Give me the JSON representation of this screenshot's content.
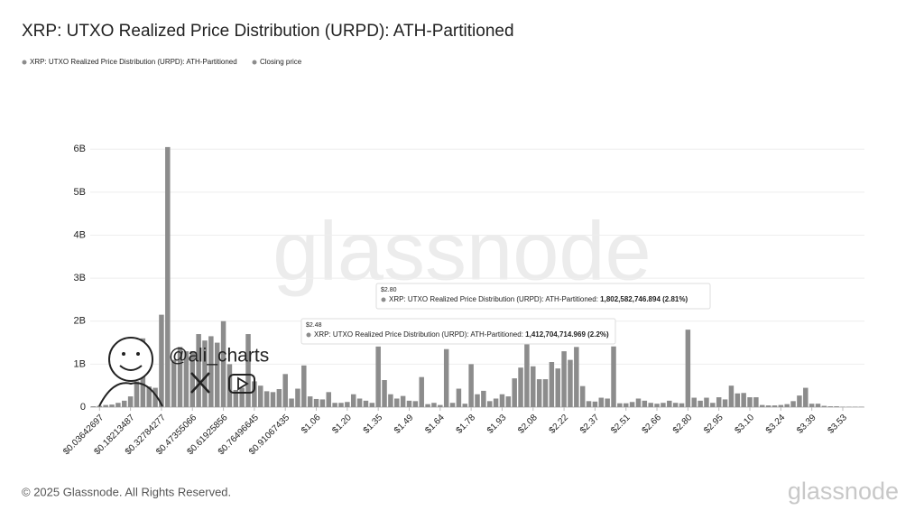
{
  "chart_data": {
    "type": "bar",
    "title": "XRP: UTXO Realized Price Distribution (URPD): ATH-Partitioned",
    "series": [
      {
        "name": "XRP: UTXO Realized Price Distribution (URPD): ATH-Partitioned",
        "color": "#8c8c8c",
        "values": [
          20000000.0,
          30000000.0,
          50000000.0,
          60000000.0,
          100000000.0,
          150000000.0,
          250000000.0,
          600000000.0,
          1600000000.0,
          480000000.0,
          450000000.0,
          2150000000.0,
          6050000000.0,
          1100000000.0,
          1400000000.0,
          1300000000.0,
          1300000000.0,
          1700000000.0,
          1550000000.0,
          1650000000.0,
          1500000000.0,
          2000000000.0,
          1000000000.0,
          400000000.0,
          450000000.0,
          1700000000.0,
          600000000.0,
          500000000.0,
          370000000.0,
          350000000.0,
          420000000.0,
          770000000.0,
          200000000.0,
          430000000.0,
          970000000.0,
          250000000.0,
          190000000.0,
          180000000.0,
          350000000.0,
          100000000.0,
          100000000.0,
          120000000.0,
          300000000.0,
          200000000.0,
          150000000.0,
          100000000.0,
          1410000000.0,
          630000000.0,
          300000000.0,
          200000000.0,
          260000000.0,
          150000000.0,
          140000000.0,
          700000000.0,
          70000000.0,
          100000000.0,
          50000000.0,
          1350000000.0,
          100000000.0,
          430000000.0,
          80000000.0,
          1000000000.0,
          300000000.0,
          380000000.0,
          140000000.0,
          200000000.0,
          300000000.0,
          250000000.0,
          670000000.0,
          920000000.0,
          1500000000.0,
          950000000.0,
          650000000.0,
          650000000.0,
          1050000000.0,
          900000000.0,
          1300000000.0,
          1100000000.0,
          1400000000.0,
          490000000.0,
          140000000.0,
          130000000.0,
          220000000.0,
          200000000.0,
          1412704714.969,
          90000000.0,
          90000000.0,
          120000000.0,
          200000000.0,
          150000000.0,
          100000000.0,
          80000000.0,
          100000000.0,
          150000000.0,
          100000000.0,
          90000000.0,
          1802582746.894,
          220000000.0,
          150000000.0,
          220000000.0,
          100000000.0,
          230000000.0,
          180000000.0,
          500000000.0,
          320000000.0,
          330000000.0,
          230000000.0,
          230000000.0,
          50000000.0,
          40000000.0,
          40000000.0,
          50000000.0,
          70000000.0,
          140000000.0,
          270000000.0,
          450000000.0,
          80000000.0,
          80000000.0,
          30000000.0,
          20000000.0,
          20000000.0,
          10000000.0,
          10000000.0,
          10000000.0,
          10000000.0
        ]
      },
      {
        "name": "Closing price",
        "color": "#8c8c8c"
      }
    ],
    "categories": [
      null,
      "$0.03642697",
      null,
      null,
      null,
      null,
      "$0.18213487",
      null,
      null,
      null,
      null,
      "$0.32784277",
      null,
      null,
      null,
      null,
      "$0.47355066",
      null,
      null,
      null,
      null,
      "$0.61925856",
      null,
      null,
      null,
      null,
      "$0.76496645",
      null,
      null,
      null,
      null,
      "$0.91067435",
      null,
      null,
      null,
      null,
      "$1.06",
      null,
      null,
      null,
      null,
      "$1.20",
      null,
      null,
      null,
      null,
      "$1.35",
      null,
      null,
      null,
      null,
      "$1.49",
      null,
      null,
      null,
      null,
      "$1.64",
      null,
      null,
      null,
      null,
      "$1.78",
      null,
      null,
      null,
      null,
      "$1.93",
      null,
      null,
      null,
      null,
      "$2.08",
      null,
      null,
      null,
      null,
      "$2.22",
      null,
      null,
      null,
      null,
      "$2.37",
      null,
      null,
      null,
      null,
      "$2.51",
      null,
      null,
      null,
      null,
      "$2.66",
      null,
      null,
      null,
      null,
      "$2.80",
      null,
      null,
      null,
      null,
      "$2.95",
      null,
      null,
      null,
      null,
      "$3.10",
      null,
      null,
      null,
      null,
      "$3.24",
      null,
      null,
      null,
      null,
      "$3.39",
      null,
      null,
      null,
      null,
      "$3.53",
      null,
      null,
      null
    ],
    "ylim": [
      0,
      6300000000
    ],
    "yticks": [
      0,
      {
        "value": 1000000000,
        "label": "1B"
      },
      {
        "value": 2000000000,
        "label": "2B"
      },
      {
        "value": 3000000000,
        "label": "3B"
      },
      {
        "value": 4000000000,
        "label": "4B"
      },
      {
        "value": 5000000000,
        "label": "5B"
      },
      {
        "value": 6000000000,
        "label": "6B"
      }
    ],
    "grid": true,
    "tooltips": [
      {
        "category": "$2.80",
        "series": "XRP: UTXO Realized Price Distribution (URPD): ATH-Partitioned:",
        "value": "1,802,582,746.894",
        "share": "(2.81%)"
      },
      {
        "category": "$2.48",
        "series": "XRP: UTXO Realized Price Distribution (URPD): ATH-Partitioned:",
        "value": "1,412,704,714.969",
        "share": "(2.2%)"
      }
    ]
  },
  "watermark": "glassnode",
  "handle": "@ali_charts",
  "footer": "© 2025 Glassnode. All Rights Reserved."
}
